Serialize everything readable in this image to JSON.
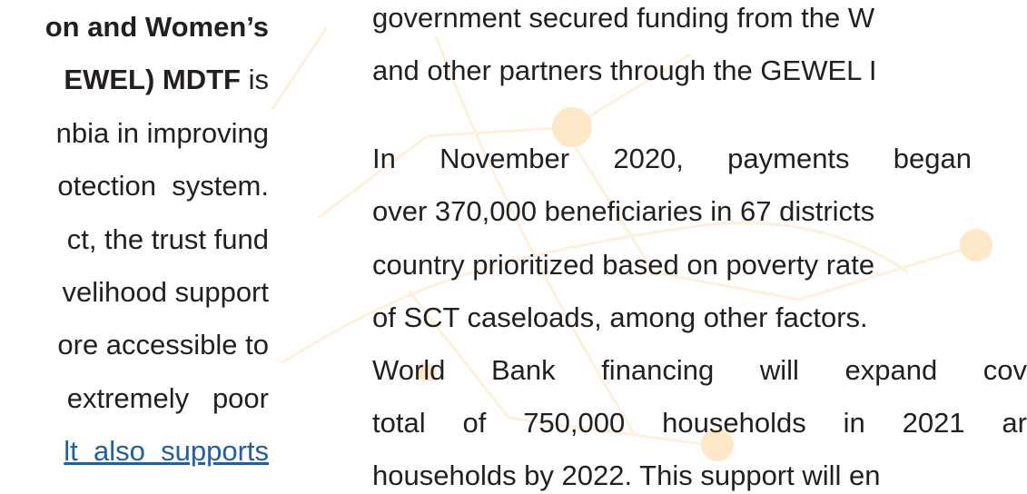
{
  "left_column": {
    "lines": [
      {
        "bold": "on and Women’s"
      },
      {
        "bold": "EWEL) MDTF",
        "text": " is"
      },
      {
        "text": "nbia in improving"
      },
      {
        "text": "otection  system."
      },
      {
        "text": "ct, the trust fund"
      },
      {
        "text": "velihood support"
      },
      {
        "text": "ore accessible to"
      },
      {
        "text": "extremely   poor"
      },
      {
        "link": "lt  also  supports"
      }
    ]
  },
  "right_column": {
    "paragraphs": [
      [
        "government secured funding from the W",
        "and other partners through the GEWEL I"
      ],
      [
        "In November 2020, payments began",
        "over 370,000 beneficiaries in 67 districts",
        "country prioritized based on poverty rate",
        "of SCT caseloads, among other factors.",
        "World Bank financing will expand cov",
        "total of 750,000 households in 2021 ar",
        "households by 2022. This support will en"
      ]
    ]
  }
}
